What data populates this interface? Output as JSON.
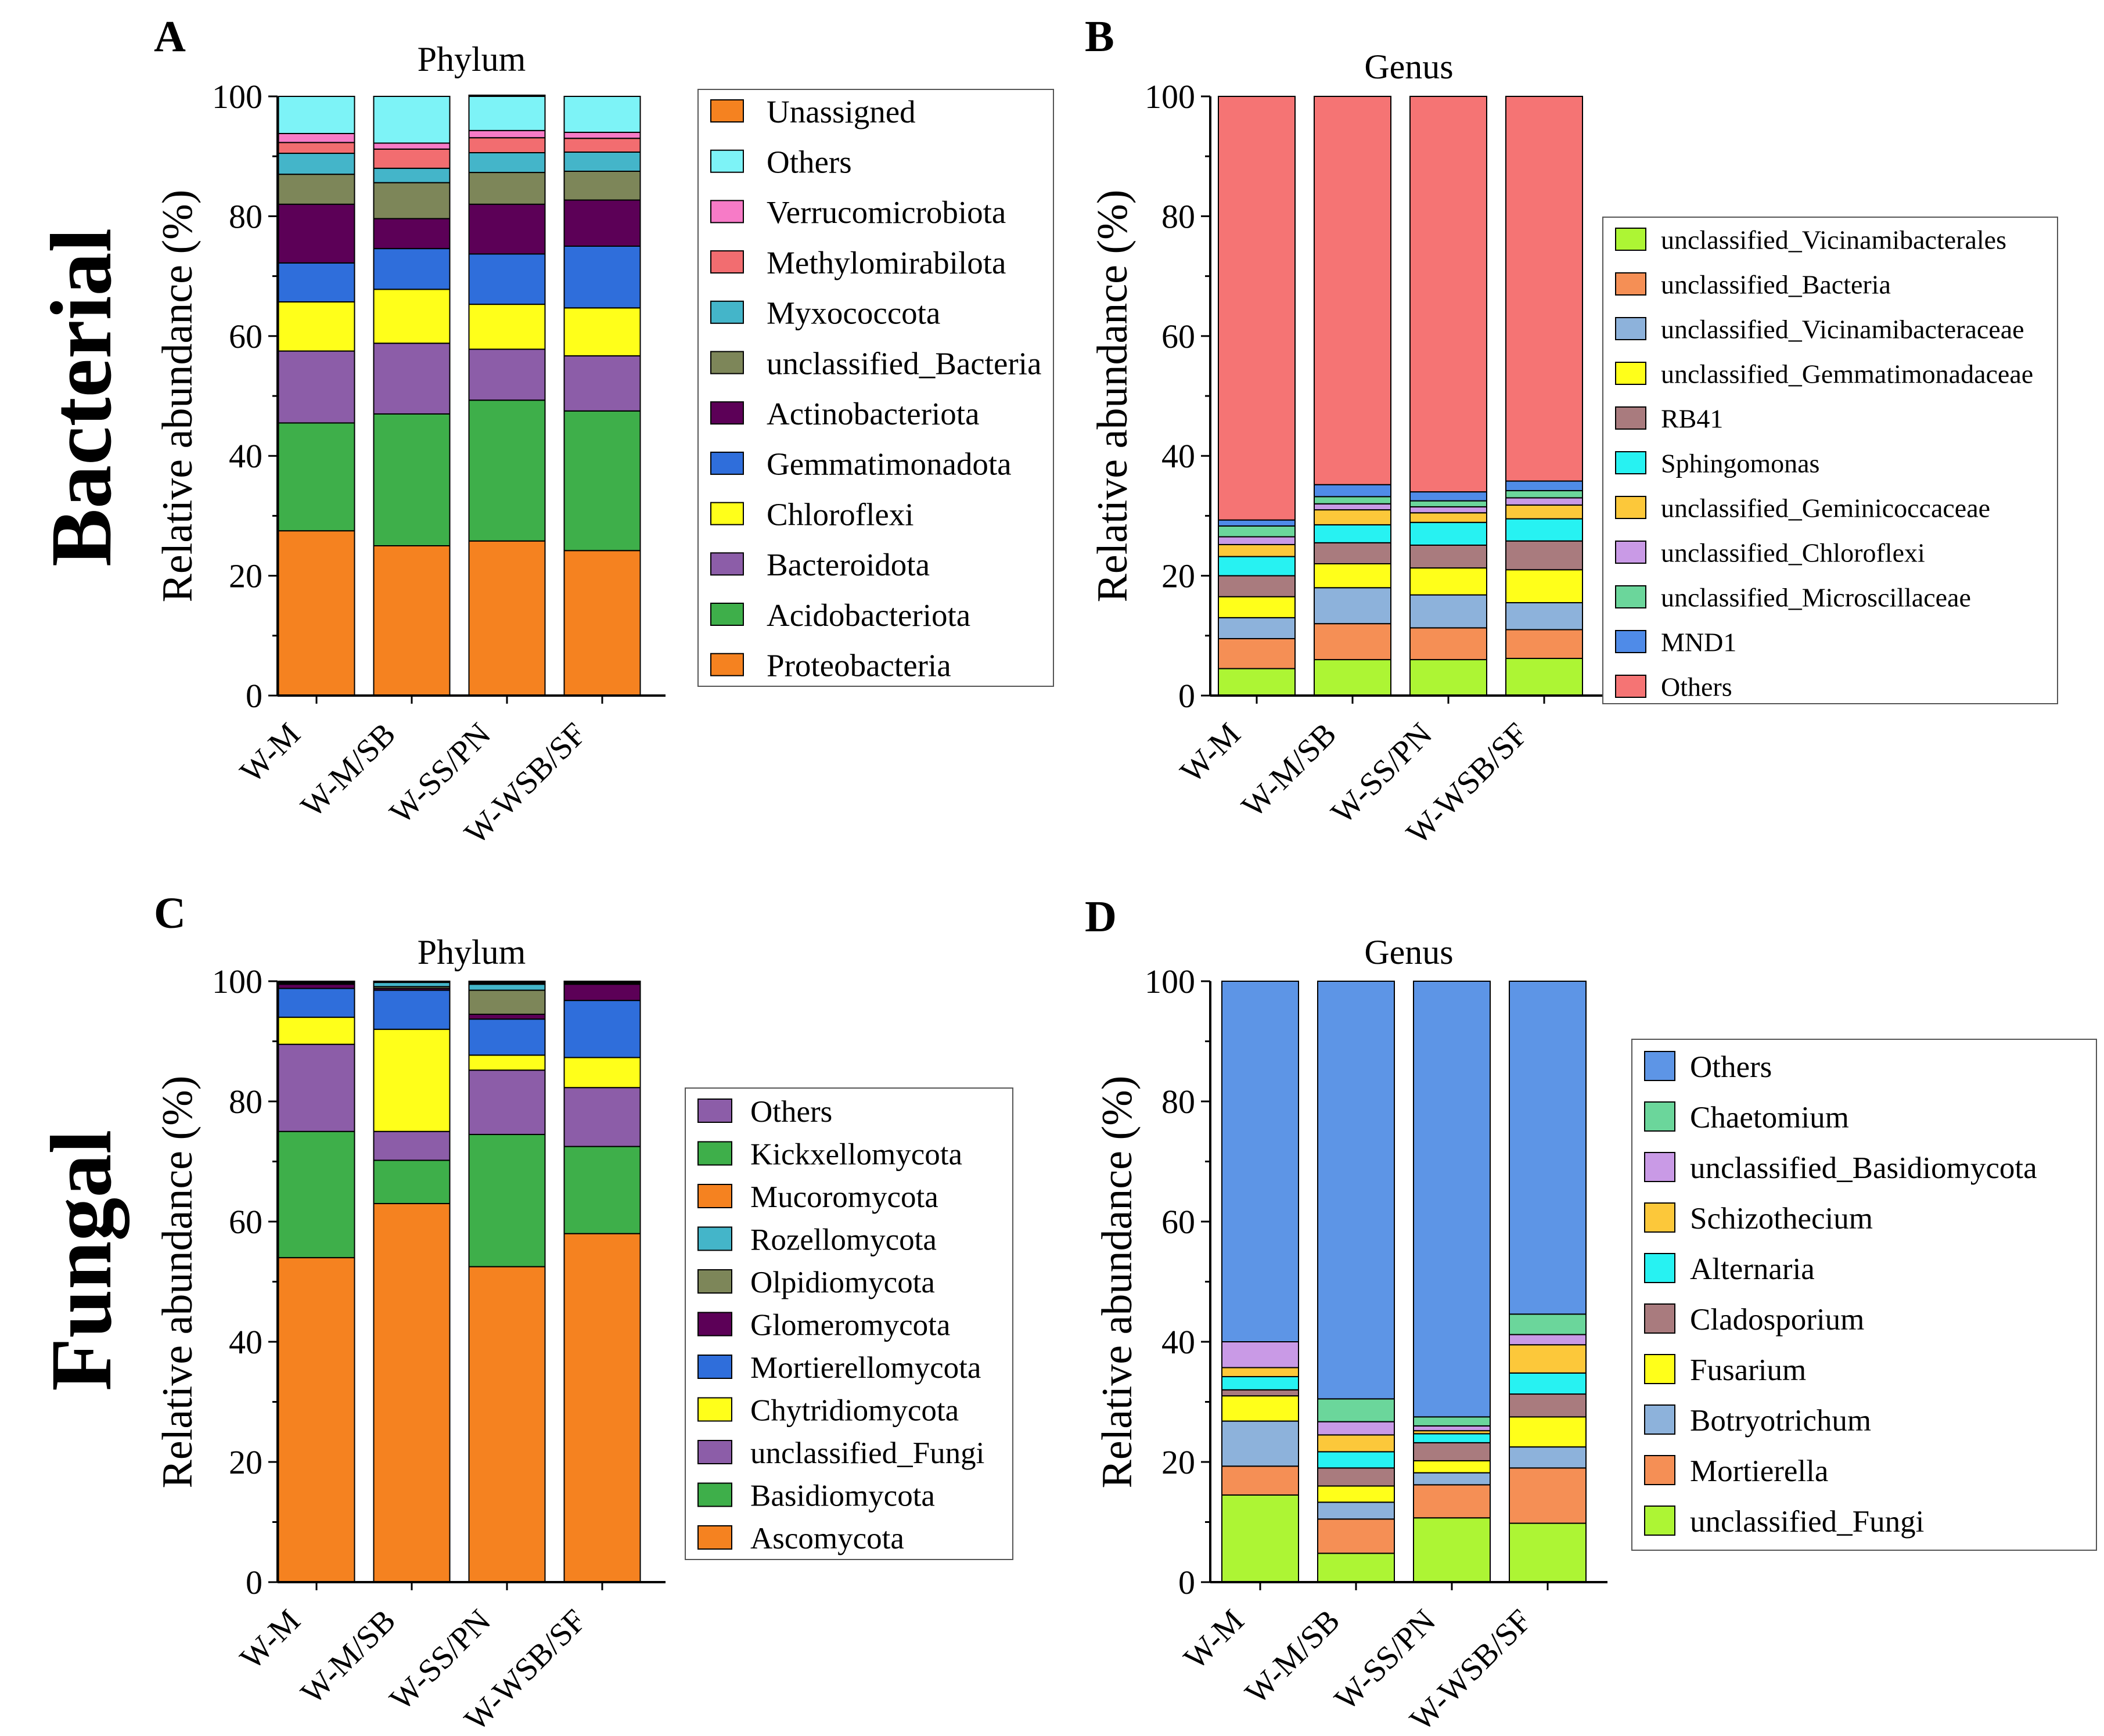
{
  "row_labels": {
    "top": "Bacterial",
    "bottom": "Fungal"
  },
  "chart_data": [
    {
      "panel": "A",
      "type": "bar",
      "stacked": true,
      "title": "Phylum",
      "xlabel": "",
      "ylabel": "Relative abundance (%)",
      "ylim": [
        0,
        100
      ],
      "yticks": [
        "0",
        "20",
        "40",
        "60",
        "80",
        "100"
      ],
      "categories": [
        "W-M",
        "W-M/SB",
        "W-SS/PN",
        "W-WSB/SF"
      ],
      "legend_position": "right",
      "series": [
        {
          "name": "Proteobacteria",
          "color": "#F58220",
          "values": [
            27.5,
            25.0,
            25.8,
            24.2
          ]
        },
        {
          "name": "Acidobacteriota",
          "color": "#3EAF4A",
          "values": [
            18.0,
            22.0,
            23.5,
            23.3
          ]
        },
        {
          "name": "Bacteroidota",
          "color": "#8C5DA8",
          "values": [
            12.0,
            11.8,
            8.5,
            9.2
          ]
        },
        {
          "name": "Chloroflexi",
          "color": "#FFFF1A",
          "values": [
            8.2,
            9.0,
            7.5,
            8.0
          ]
        },
        {
          "name": "Gemmatimonadota",
          "color": "#2F6EDB",
          "values": [
            6.5,
            6.8,
            8.4,
            10.3
          ]
        },
        {
          "name": "Actinobacteriota",
          "color": "#5C0057",
          "values": [
            9.8,
            5.0,
            8.3,
            7.7
          ]
        },
        {
          "name": "unclassified_Bacteria",
          "color": "#7D8659",
          "values": [
            5.0,
            6.0,
            5.3,
            4.8
          ]
        },
        {
          "name": "Myxococcota",
          "color": "#44B5C9",
          "values": [
            3.5,
            2.4,
            3.3,
            3.2
          ]
        },
        {
          "name": "Methylomirabilota",
          "color": "#F26D70",
          "values": [
            1.8,
            3.2,
            2.5,
            2.3
          ]
        },
        {
          "name": "Verrucomicrobiota",
          "color": "#F77BC7",
          "values": [
            1.5,
            1.0,
            1.2,
            1.0
          ]
        },
        {
          "name": "Others",
          "color": "#7DF3F7",
          "values": [
            6.2,
            7.8,
            5.7,
            6.0
          ]
        },
        {
          "name": "Unassigned",
          "color": "#F58220",
          "values": [
            0,
            0,
            0.2,
            0
          ]
        }
      ]
    },
    {
      "panel": "B",
      "type": "bar",
      "stacked": true,
      "title": "Genus",
      "xlabel": "",
      "ylabel": "Relative abundance (%)",
      "ylim": [
        0,
        100
      ],
      "yticks": [
        "0",
        "20",
        "40",
        "60",
        "80",
        "100"
      ],
      "categories": [
        "W-M",
        "W-M/SB",
        "W-SS/PN",
        "W-WSB/SF"
      ],
      "legend_position": "right",
      "series": [
        {
          "name": "unclassified_Vicinamibacterales",
          "color": "#ADF534",
          "values": [
            4.5,
            6.0,
            6.0,
            6.2
          ]
        },
        {
          "name": "unclassified_Bacteria",
          "color": "#F58F55",
          "values": [
            5.0,
            6.0,
            5.3,
            4.8
          ]
        },
        {
          "name": "unclassified_Vicinamibacteraceae",
          "color": "#8DB2DB",
          "values": [
            3.5,
            6.0,
            5.5,
            4.5
          ]
        },
        {
          "name": "unclassified_Gemmatimonadaceae",
          "color": "#FFFF1A",
          "values": [
            3.5,
            4.0,
            4.5,
            5.5
          ]
        },
        {
          "name": "RB41",
          "color": "#A97B7E",
          "values": [
            3.5,
            3.5,
            3.8,
            4.8
          ]
        },
        {
          "name": "Sphingomonas",
          "color": "#27F2F2",
          "values": [
            3.2,
            3.0,
            3.8,
            3.7
          ]
        },
        {
          "name": "unclassified_Geminicoccaceae",
          "color": "#FCC83A",
          "values": [
            2.0,
            2.5,
            1.6,
            2.3
          ]
        },
        {
          "name": "unclassified_Chloroflexi",
          "color": "#C99AE6",
          "values": [
            1.3,
            1.0,
            1.0,
            1.2
          ]
        },
        {
          "name": "unclassified_Microscillaceae",
          "color": "#6BD69B",
          "values": [
            1.8,
            1.2,
            1.0,
            1.2
          ]
        },
        {
          "name": "MND1",
          "color": "#4F8BE8",
          "values": [
            1.0,
            2.0,
            1.5,
            1.6
          ]
        },
        {
          "name": "Others",
          "color": "#F57474",
          "values": [
            70.7,
            64.8,
            66.0,
            64.2
          ]
        }
      ]
    },
    {
      "panel": "C",
      "type": "bar",
      "stacked": true,
      "title": "Phylum",
      "xlabel": "",
      "ylabel": "Relative abundance (%)",
      "ylim": [
        0,
        100
      ],
      "yticks": [
        "0",
        "20",
        "40",
        "60",
        "80",
        "100"
      ],
      "categories": [
        "W-M",
        "W-M/SB",
        "W-SS/PN",
        "W-WSB/SF"
      ],
      "legend_position": "center-right",
      "series": [
        {
          "name": "Ascomycota",
          "color": "#F58220",
          "values": [
            54.0,
            63.0,
            52.5,
            58.0
          ]
        },
        {
          "name": "Basidiomycota",
          "color": "#3EAF4A",
          "values": [
            21.0,
            7.2,
            22.0,
            14.5
          ]
        },
        {
          "name": "unclassified_Fungi",
          "color": "#8C5DA8",
          "values": [
            14.5,
            4.8,
            10.7,
            9.8
          ]
        },
        {
          "name": "Chytridiomycota",
          "color": "#FFFF1A",
          "values": [
            4.5,
            17.0,
            2.5,
            5.0
          ]
        },
        {
          "name": "Mortierellomycota",
          "color": "#2F6EDB",
          "values": [
            4.8,
            6.5,
            6.0,
            9.5
          ]
        },
        {
          "name": "Glomeromycota",
          "color": "#5C0057",
          "values": [
            0.7,
            0.3,
            0.8,
            2.7
          ]
        },
        {
          "name": "Olpidiomycota",
          "color": "#7D8659",
          "values": [
            0.2,
            0.3,
            4.0,
            0.2
          ]
        },
        {
          "name": "Rozellomycota",
          "color": "#44B5C9",
          "values": [
            0.1,
            0.7,
            1.0,
            0.1
          ]
        },
        {
          "name": "Mucoromycota",
          "color": "#F58220",
          "values": [
            0.1,
            0.1,
            0.2,
            0.1
          ]
        },
        {
          "name": "Kickxellomycota",
          "color": "#3EAF4A",
          "values": [
            0.1,
            0.1,
            0.1,
            0.1
          ]
        },
        {
          "name": "Others",
          "color": "#8C5DA8",
          "values": [
            0,
            0,
            0.2,
            0
          ]
        }
      ]
    },
    {
      "panel": "D",
      "type": "bar",
      "stacked": true,
      "title": "Genus",
      "xlabel": "",
      "ylabel": "Relative abundance (%)",
      "ylim": [
        0,
        100
      ],
      "yticks": [
        "0",
        "20",
        "40",
        "60",
        "80",
        "100"
      ],
      "categories": [
        "W-M",
        "W-M/SB",
        "W-SS/PN",
        "W-WSB/SF"
      ],
      "legend_position": "right",
      "series": [
        {
          "name": "unclassified_Fungi",
          "color": "#ADF534",
          "values": [
            14.5,
            4.8,
            10.7,
            9.8
          ]
        },
        {
          "name": "Mortierella",
          "color": "#F58F55",
          "values": [
            4.8,
            5.7,
            5.5,
            9.2
          ]
        },
        {
          "name": "Botryotrichum",
          "color": "#8DB2DB",
          "values": [
            7.5,
            2.8,
            2.0,
            3.5
          ]
        },
        {
          "name": "Fusarium",
          "color": "#FFFF1A",
          "values": [
            4.2,
            2.7,
            2.0,
            5.0
          ]
        },
        {
          "name": "Cladosporium",
          "color": "#A97B7E",
          "values": [
            1.0,
            3.0,
            3.0,
            3.8
          ]
        },
        {
          "name": "Alternaria",
          "color": "#27F2F2",
          "values": [
            2.2,
            2.7,
            1.5,
            3.5
          ]
        },
        {
          "name": "Schizothecium",
          "color": "#FCC83A",
          "values": [
            1.5,
            2.8,
            0.5,
            4.7
          ]
        },
        {
          "name": "unclassified_Basidiomycota",
          "color": "#C99AE6",
          "values": [
            4.3,
            2.2,
            0.8,
            1.7
          ]
        },
        {
          "name": "Chaetomium",
          "color": "#6BD69B",
          "values": [
            0,
            3.8,
            1.5,
            3.4
          ]
        },
        {
          "name": "Others",
          "color": "#5D95E6",
          "values": [
            60.0,
            69.5,
            72.5,
            55.4
          ]
        }
      ]
    }
  ]
}
